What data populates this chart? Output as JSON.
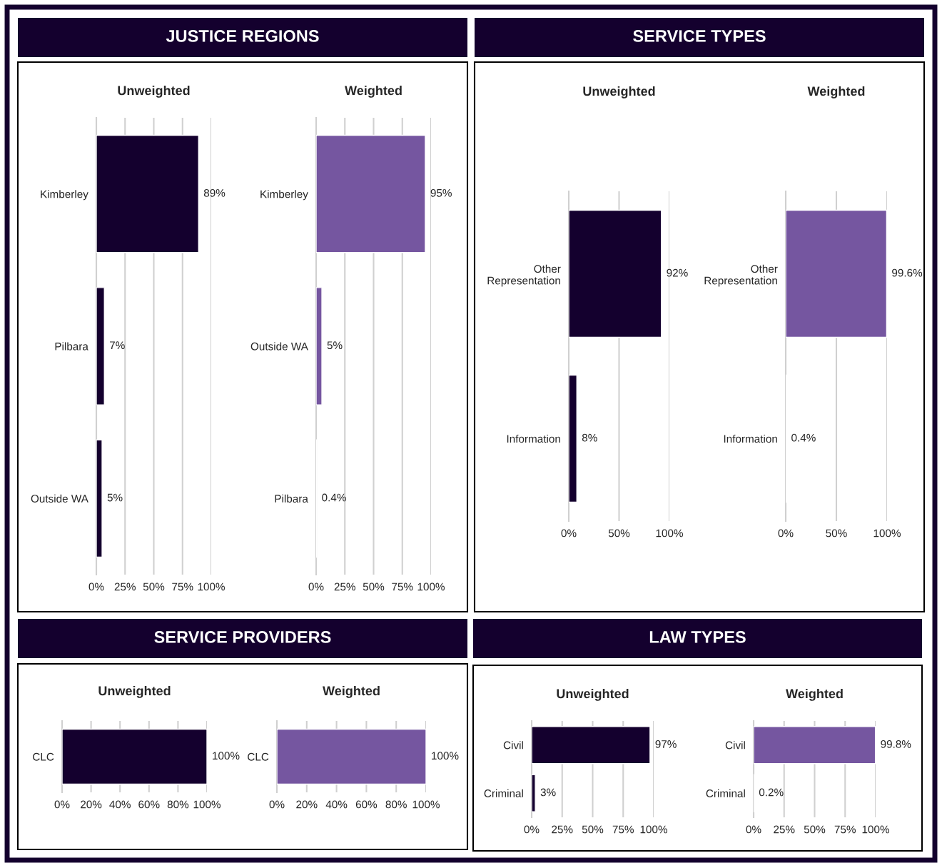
{
  "chart_data": [
    {
      "type": "other",
      "title": "JUSTICE REGIONS"
    },
    {
      "type": "other",
      "title": "SERVICE TYPES"
    },
    {
      "type": "bar",
      "orientation": "horizontal",
      "title": "Unweighted",
      "categories": [
        "Kimberley",
        "Pilbara",
        "Outside WA"
      ],
      "values": [
        89,
        7,
        5
      ],
      "value_labels": [
        "89%",
        "7%",
        "5%"
      ],
      "color": "#14002e",
      "xlim": [
        0,
        100
      ],
      "xticks": [
        {
          "value": 0,
          "label": "0%"
        },
        {
          "value": 25,
          "label": "25%"
        },
        {
          "value": 50,
          "label": "50%"
        },
        {
          "value": 75,
          "label": "75%"
        },
        {
          "value": 100,
          "label": "100%"
        }
      ],
      "grid": "x"
    },
    {
      "type": "bar",
      "orientation": "horizontal",
      "title": "Weighted",
      "categories": [
        "Kimberley",
        "Outside WA",
        "Pilbara"
      ],
      "values": [
        95,
        5,
        0.4
      ],
      "value_labels": [
        "95%",
        "5%",
        "0.4%"
      ],
      "color": "#7556a0",
      "xlim": [
        0,
        100
      ],
      "xticks": [
        {
          "value": 0,
          "label": "0%"
        },
        {
          "value": 25,
          "label": "25%"
        },
        {
          "value": 50,
          "label": "50%"
        },
        {
          "value": 75,
          "label": "75%"
        },
        {
          "value": 100,
          "label": "100%"
        }
      ],
      "grid": "x"
    },
    {
      "type": "bar",
      "orientation": "horizontal",
      "title": "Unweighted",
      "categories": [
        "Other\nRepresentation",
        "Information"
      ],
      "values": [
        92,
        8
      ],
      "value_labels": [
        "92%",
        "8%"
      ],
      "color": "#14002e",
      "xlim": [
        0,
        100
      ],
      "xticks": [
        {
          "value": 0,
          "label": "0%"
        },
        {
          "value": 50,
          "label": "50%"
        },
        {
          "value": 100,
          "label": "100%"
        }
      ],
      "grid": "x"
    },
    {
      "type": "bar",
      "orientation": "horizontal",
      "title": "Weighted",
      "categories": [
        "Other\nRepresentation",
        "Information"
      ],
      "values": [
        99.6,
        0.4
      ],
      "value_labels": [
        "99.6%",
        "0.4%"
      ],
      "color": "#7556a0",
      "xlim": [
        0,
        100
      ],
      "xticks": [
        {
          "value": 0,
          "label": "0%"
        },
        {
          "value": 50,
          "label": "50%"
        },
        {
          "value": 100,
          "label": "100%"
        }
      ],
      "grid": "x"
    },
    {
      "type": "other",
      "title": "SERVICE PROVIDERS"
    },
    {
      "type": "other",
      "title": "LAW TYPES"
    },
    {
      "type": "bar",
      "orientation": "horizontal",
      "title": "Unweighted",
      "categories": [
        "CLC"
      ],
      "values": [
        100
      ],
      "value_labels": [
        "100%"
      ],
      "color": "#14002e",
      "xlim": [
        0,
        100
      ],
      "xticks": [
        {
          "value": 0,
          "label": "0%"
        },
        {
          "value": 20,
          "label": "20%"
        },
        {
          "value": 40,
          "label": "40%"
        },
        {
          "value": 60,
          "label": "60%"
        },
        {
          "value": 80,
          "label": "80%"
        },
        {
          "value": 100,
          "label": "100%"
        }
      ],
      "grid": "x"
    },
    {
      "type": "bar",
      "orientation": "horizontal",
      "title": "Weighted",
      "categories": [
        "CLC"
      ],
      "values": [
        100
      ],
      "value_labels": [
        "100%"
      ],
      "color": "#7556a0",
      "xlim": [
        0,
        100
      ],
      "xticks": [
        {
          "value": 0,
          "label": "0%"
        },
        {
          "value": 20,
          "label": "20%"
        },
        {
          "value": 40,
          "label": "40%"
        },
        {
          "value": 60,
          "label": "60%"
        },
        {
          "value": 80,
          "label": "80%"
        },
        {
          "value": 100,
          "label": "100%"
        }
      ],
      "grid": "x"
    },
    {
      "type": "bar",
      "orientation": "horizontal",
      "title": "Unweighted",
      "categories": [
        "Civil",
        "Criminal"
      ],
      "values": [
        97,
        3
      ],
      "value_labels": [
        "97%",
        "3%"
      ],
      "color": "#14002e",
      "xlim": [
        0,
        100
      ],
      "xticks": [
        {
          "value": 0,
          "label": "0%"
        },
        {
          "value": 25,
          "label": "25%"
        },
        {
          "value": 50,
          "label": "50%"
        },
        {
          "value": 75,
          "label": "75%"
        },
        {
          "value": 100,
          "label": "100%"
        }
      ],
      "grid": "x"
    },
    {
      "type": "bar",
      "orientation": "horizontal",
      "title": "Weighted",
      "categories": [
        "Civil",
        "Criminal"
      ],
      "values": [
        99.8,
        0.2
      ],
      "value_labels": [
        "99.8%",
        "0.2%"
      ],
      "color": "#7556a0",
      "xlim": [
        0,
        100
      ],
      "xticks": [
        {
          "value": 0,
          "label": "0%"
        },
        {
          "value": 25,
          "label": "25%"
        },
        {
          "value": 50,
          "label": "50%"
        },
        {
          "value": 75,
          "label": "75%"
        },
        {
          "value": 100,
          "label": "100%"
        }
      ],
      "grid": "x"
    }
  ]
}
